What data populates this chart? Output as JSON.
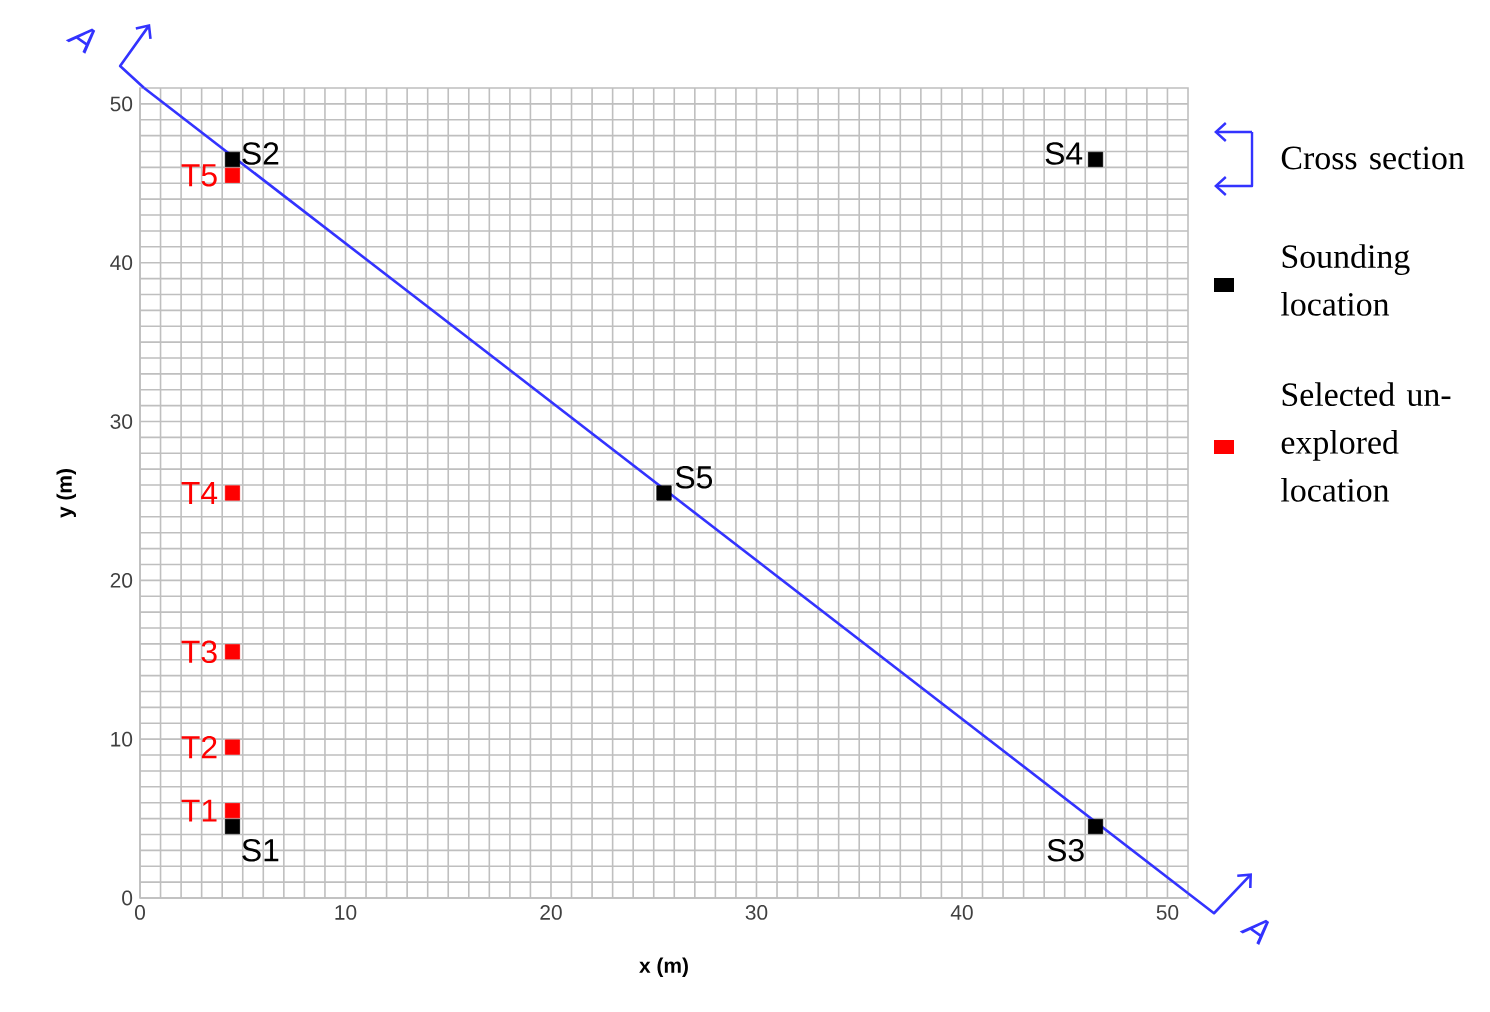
{
  "chart_data": {
    "type": "scatter",
    "xlabel": "x (m)",
    "ylabel": "y (m)",
    "xlim": [
      0,
      51
    ],
    "ylim": [
      0,
      51
    ],
    "xticks": [
      0,
      10,
      20,
      30,
      40,
      50
    ],
    "yticks": [
      0,
      10,
      20,
      30,
      40,
      50
    ],
    "grid": true,
    "legend": "right",
    "annotations": [
      "A",
      "A"
    ],
    "series": [
      {
        "name": "Cross section",
        "type": "line",
        "color": "#3333ff",
        "x": [
          0.2,
          51
        ],
        "values": [
          51,
          0.3
        ]
      },
      {
        "name": "Sounding location",
        "marker": "square",
        "color": "#000000",
        "x": [
          4.5,
          4.5,
          46.5,
          46.5,
          25.5
        ],
        "values": [
          4.5,
          46.5,
          4.5,
          46.5,
          25.5
        ],
        "value_labels": [
          "S1",
          "S2",
          "S3",
          "S4",
          "S5"
        ]
      },
      {
        "name": "Selected un-explored location",
        "marker": "square",
        "color": "#ff0000",
        "x": [
          4.5,
          4.5,
          4.5,
          4.5,
          4.5
        ],
        "values": [
          5.5,
          9.5,
          15.5,
          25.5,
          45.5
        ],
        "value_labels": [
          "T1",
          "T2",
          "T3",
          "T4",
          "T5"
        ]
      }
    ]
  }
}
